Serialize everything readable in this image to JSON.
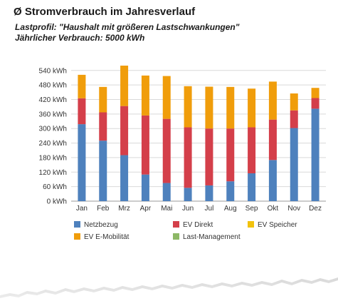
{
  "title": "Ø Stromverbrauch im Jahresverlauf",
  "subtitle_1": "Lastprofil: \"Haushalt mit größeren Lastschwankungen\"",
  "subtitle_2": "Jährlicher Verbrauch: 5000 kWh",
  "chart_data": {
    "type": "bar",
    "stacked": true,
    "categories": [
      "Jan",
      "Feb",
      "Mrz",
      "Apr",
      "Mai",
      "Jun",
      "Jul",
      "Aug",
      "Sep",
      "Okt",
      "Nov",
      "Dez"
    ],
    "ylim": [
      0,
      560
    ],
    "yticks": [
      0,
      60,
      120,
      180,
      240,
      300,
      360,
      420,
      480,
      540
    ],
    "ytick_labels": [
      "0 kWh",
      "60 kWh",
      "120 kWh",
      "180 kWh",
      "240 kWh",
      "300 kWh",
      "360 kWh",
      "420 kWh",
      "480 kWh",
      "540 kWh"
    ],
    "grid": true,
    "legend_position": "bottom",
    "series": [
      {
        "name": "Netzbezug",
        "color": "#4e81bd",
        "values": [
          318,
          250,
          190,
          110,
          75,
          55,
          65,
          82,
          115,
          170,
          302,
          382
        ]
      },
      {
        "name": "EV Direkt",
        "color": "#d43f4a",
        "values": [
          107,
          117,
          203,
          244,
          265,
          250,
          235,
          218,
          190,
          167,
          73,
          44
        ]
      },
      {
        "name": "EV Speicher",
        "color": "#f2c20c",
        "values": [
          0,
          0,
          0,
          0,
          0,
          0,
          0,
          0,
          0,
          0,
          0,
          0
        ]
      },
      {
        "name": "EV E-Mobilität",
        "color": "#f09d0b",
        "values": [
          97,
          105,
          167,
          165,
          177,
          170,
          173,
          172,
          160,
          157,
          70,
          42
        ]
      },
      {
        "name": "Last-Management",
        "color": "#8db866",
        "values": [
          0,
          0,
          0,
          0,
          0,
          0,
          0,
          0,
          0,
          0,
          0,
          0
        ]
      }
    ]
  }
}
